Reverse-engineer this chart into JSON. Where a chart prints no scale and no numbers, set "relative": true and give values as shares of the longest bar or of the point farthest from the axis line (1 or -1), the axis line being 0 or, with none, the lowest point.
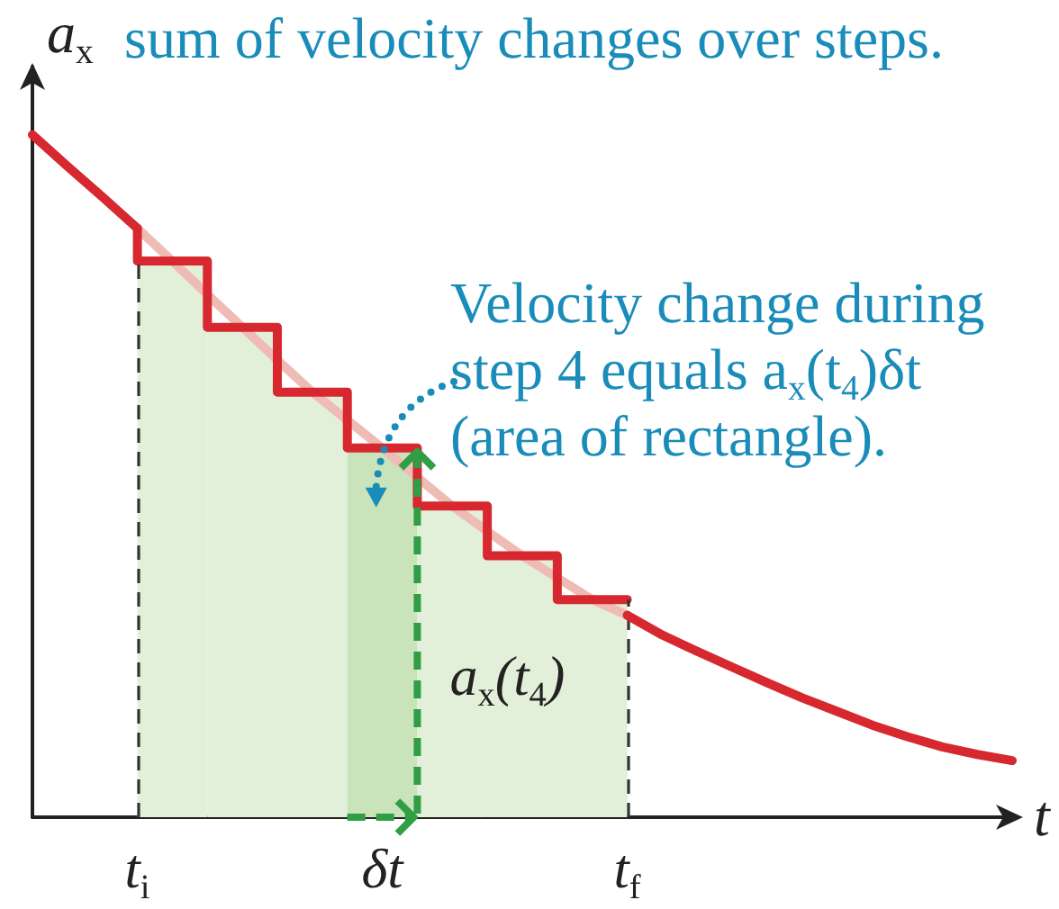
{
  "chart_data": {
    "type": "line",
    "title": "sum of velocity changes over steps.",
    "xlabel": "t",
    "ylabel": "a$_{x}$",
    "relative": true,
    "marker": "none",
    "categories": [
      null,
      null,
      null,
      "t$_{i}$",
      null,
      null,
      null,
      null,
      null,
      null,
      "δt",
      null,
      null,
      null,
      null,
      null,
      null,
      "t$_{f}$",
      null,
      null,
      null,
      null,
      null,
      null,
      null,
      null,
      null,
      null,
      null
    ],
    "annotations": [
      "Velocity change during\nstep 4 equals a$_{x}$(t$_{4}$)δt\n(area of rectangle).",
      "a$_{x}$(t$_{4}$)"
    ],
    "ref_lines": [
      {
        "axis": "x",
        "value": "t$_{i}$",
        "color": "#333333",
        "line_style": "dashed"
      },
      {
        "axis": "x",
        "value": "t$_{f}$",
        "color": "#333333",
        "line_style": "dashed"
      }
    ],
    "series": [
      {
        "type": "bar",
        "color": "#e2efd9",
        "values": [
          null,
          null,
          null,
          null,
          0.815,
          null,
          0.718,
          null,
          0.623,
          null,
          0.541,
          null,
          0.456,
          null,
          0.383,
          null,
          0.319,
          null,
          null,
          null,
          null,
          null,
          null,
          null,
          null,
          null,
          null,
          null,
          null
        ],
        "colors": [
          null,
          null,
          null,
          null,
          "#e2efd9",
          null,
          "#e2efd9",
          null,
          "#e2efd9",
          null,
          "#c9e3bb",
          null,
          "#e2efd9",
          null,
          "#e2efd9",
          null,
          "#e2efd9",
          null,
          null,
          null,
          null,
          null,
          null,
          null,
          null,
          null,
          null,
          null,
          null
        ]
      },
      {
        "color": "#efbcb5",
        "values": [
          null,
          null,
          null,
          0.863,
          0.815,
          0.766,
          0.718,
          0.67,
          0.623,
          0.582,
          0.541,
          0.498,
          0.456,
          0.419,
          0.383,
          0.351,
          0.319,
          0.296,
          null,
          null,
          null,
          null,
          null,
          null,
          null,
          null,
          null,
          null,
          null
        ]
      },
      {
        "type": "step",
        "color": "#d7282f",
        "values": [
          null,
          null,
          null,
          0.863,
          0.815,
          0.815,
          0.718,
          0.718,
          0.623,
          0.623,
          0.541,
          0.541,
          0.456,
          0.456,
          0.383,
          0.383,
          0.319,
          0.319,
          null,
          null,
          null,
          null,
          null,
          null,
          null,
          null,
          null,
          null,
          null
        ]
      },
      {
        "color": "#d7282f",
        "values": [
          1,
          0.954,
          0.909,
          0.863,
          null,
          null,
          null,
          null,
          null,
          null,
          null,
          null,
          null,
          null,
          null,
          null,
          null,
          null,
          null,
          null,
          null,
          null,
          null,
          null,
          null,
          null,
          null,
          null,
          null
        ]
      },
      {
        "color": "#d7282f",
        "values": [
          null,
          null,
          null,
          null,
          null,
          null,
          null,
          null,
          null,
          null,
          null,
          null,
          null,
          null,
          null,
          null,
          null,
          0.296,
          0.267,
          0.243,
          0.22,
          0.197,
          0.175,
          0.155,
          0.135,
          0.118,
          0.103,
          0.092,
          0.083
        ]
      }
    ]
  }
}
